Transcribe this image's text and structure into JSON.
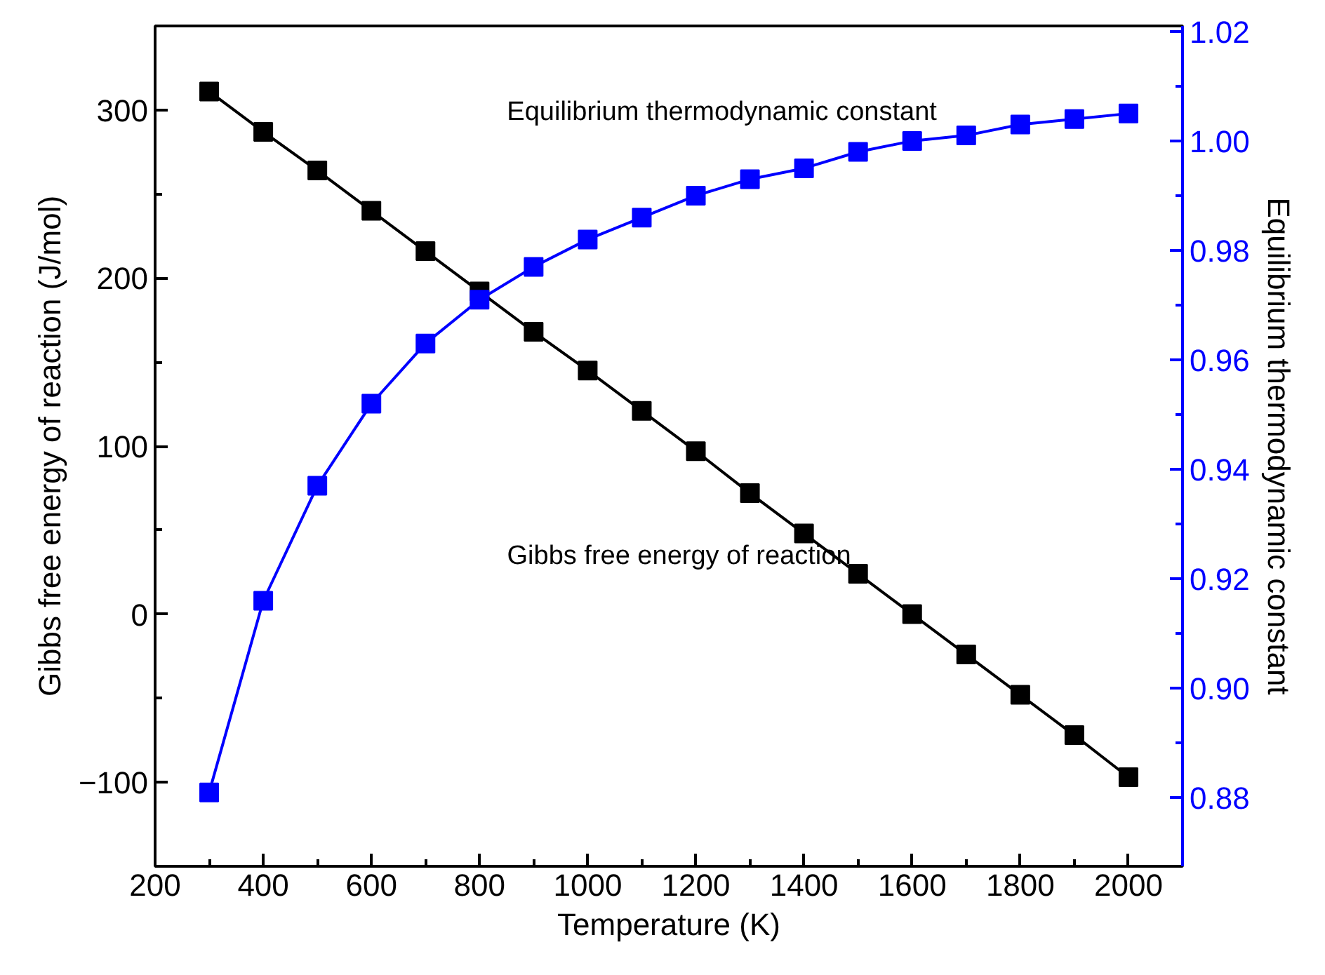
{
  "chart_data": {
    "type": "line",
    "xlabel": "Temperature (K)",
    "ylabel": "Gibbs free energy of reaction (J/mol)",
    "y2label": "Equilibrium thermodynamic constant",
    "x": [
      300,
      400,
      500,
      600,
      700,
      800,
      900,
      1000,
      1100,
      1200,
      1300,
      1400,
      1500,
      1600,
      1700,
      1800,
      1900,
      2000
    ],
    "series": [
      {
        "name": "Gibbs free energy of reaction",
        "color": "#000000",
        "values": [
          311,
          287,
          264,
          240,
          216,
          192,
          168,
          145,
          121,
          97,
          72,
          48,
          24,
          0,
          -24,
          -48,
          -72,
          -97
        ]
      },
      {
        "name": "Equilibrium thermodynamic constant",
        "color": "#0000ff",
        "axis": "y2",
        "values": [
          0.881,
          0.916,
          0.937,
          0.952,
          0.963,
          0.971,
          0.977,
          0.982,
          0.986,
          0.99,
          0.993,
          0.995,
          0.998,
          1.0,
          1.001,
          1.003,
          1.004,
          1.005
        ]
      }
    ],
    "xlim": [
      200,
      2100
    ],
    "xticks": [
      200,
      400,
      600,
      800,
      1000,
      1200,
      1400,
      1600,
      1800,
      2000
    ],
    "ylim": [
      -150,
      350
    ],
    "yticks": [
      -100,
      0,
      100,
      200,
      300
    ],
    "y2lim": [
      0.8675,
      1.021
    ],
    "y2ticks": [
      {
        "value": 0.88,
        "label": "0.88"
      },
      {
        "value": 0.9,
        "label": "0.90"
      },
      {
        "value": 0.92,
        "label": "0.92"
      },
      {
        "value": 0.94,
        "label": "0.94"
      },
      {
        "value": 0.96,
        "label": "0.96"
      },
      {
        "value": 0.98,
        "label": "0.98"
      },
      {
        "value": 1.0,
        "label": "1.00"
      },
      {
        "value": 1.02,
        "label": "1.02"
      }
    ],
    "marker": "square",
    "grid": false,
    "legend": false
  }
}
